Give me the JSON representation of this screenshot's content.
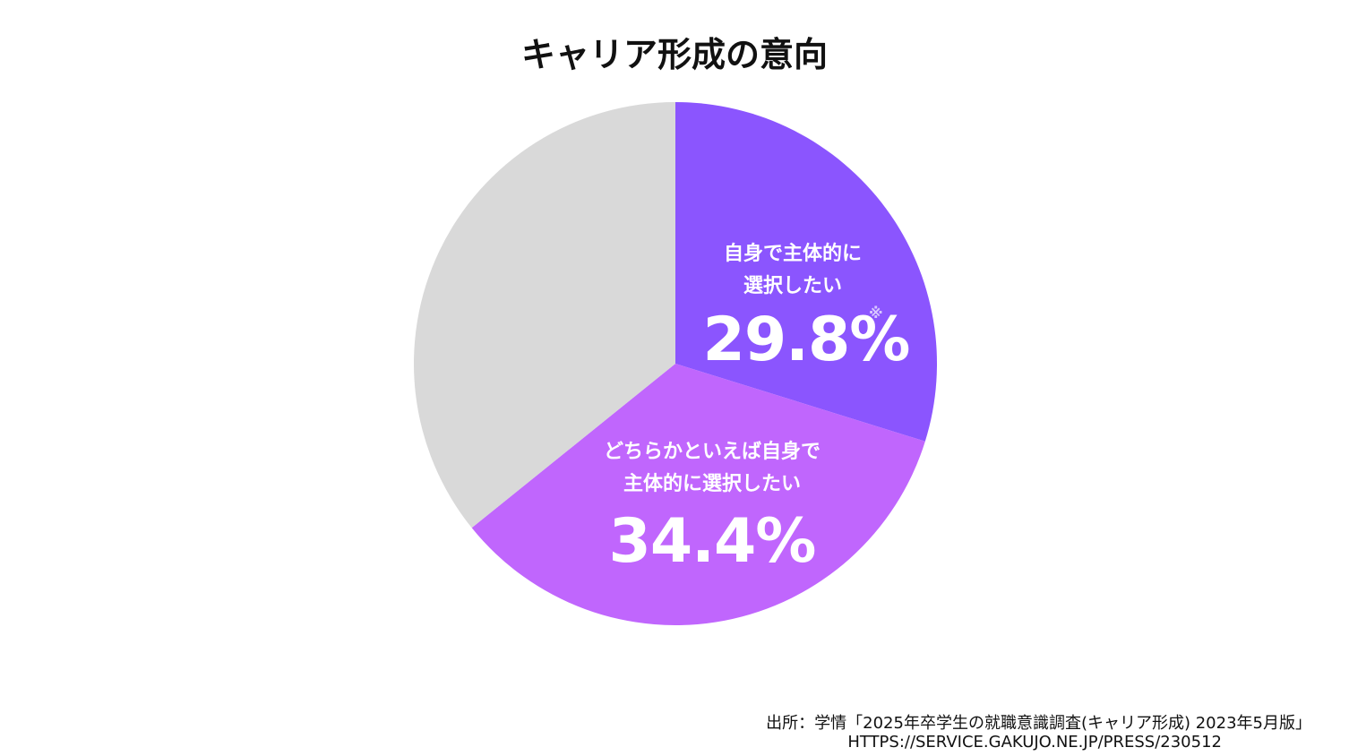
{
  "title": "キャリア形成の意向",
  "chart_data": {
    "type": "pie",
    "slices": [
      {
        "label_lines": [
          "自身で主体的に",
          "選択したい"
        ],
        "value": 29.8,
        "value_text": "29.8%",
        "mark": "※",
        "color": "#8b55fe"
      },
      {
        "label_lines": [
          "どちらかといえば自身で",
          "主体的に選択したい"
        ],
        "value": 34.4,
        "value_text": "34.4%",
        "color": "#c066fd"
      },
      {
        "value": 35.8,
        "color": "#d9d9d9"
      }
    ],
    "start": "12 o'clock, clockwise"
  },
  "source": {
    "line1": "出所：学情「2025年卒学生の就職意識調査(キャリア形成) 2023年5月版」",
    "line2": "HTTPS://SERVICE.GAKUJO.NE.JP/PRESS/230512"
  }
}
